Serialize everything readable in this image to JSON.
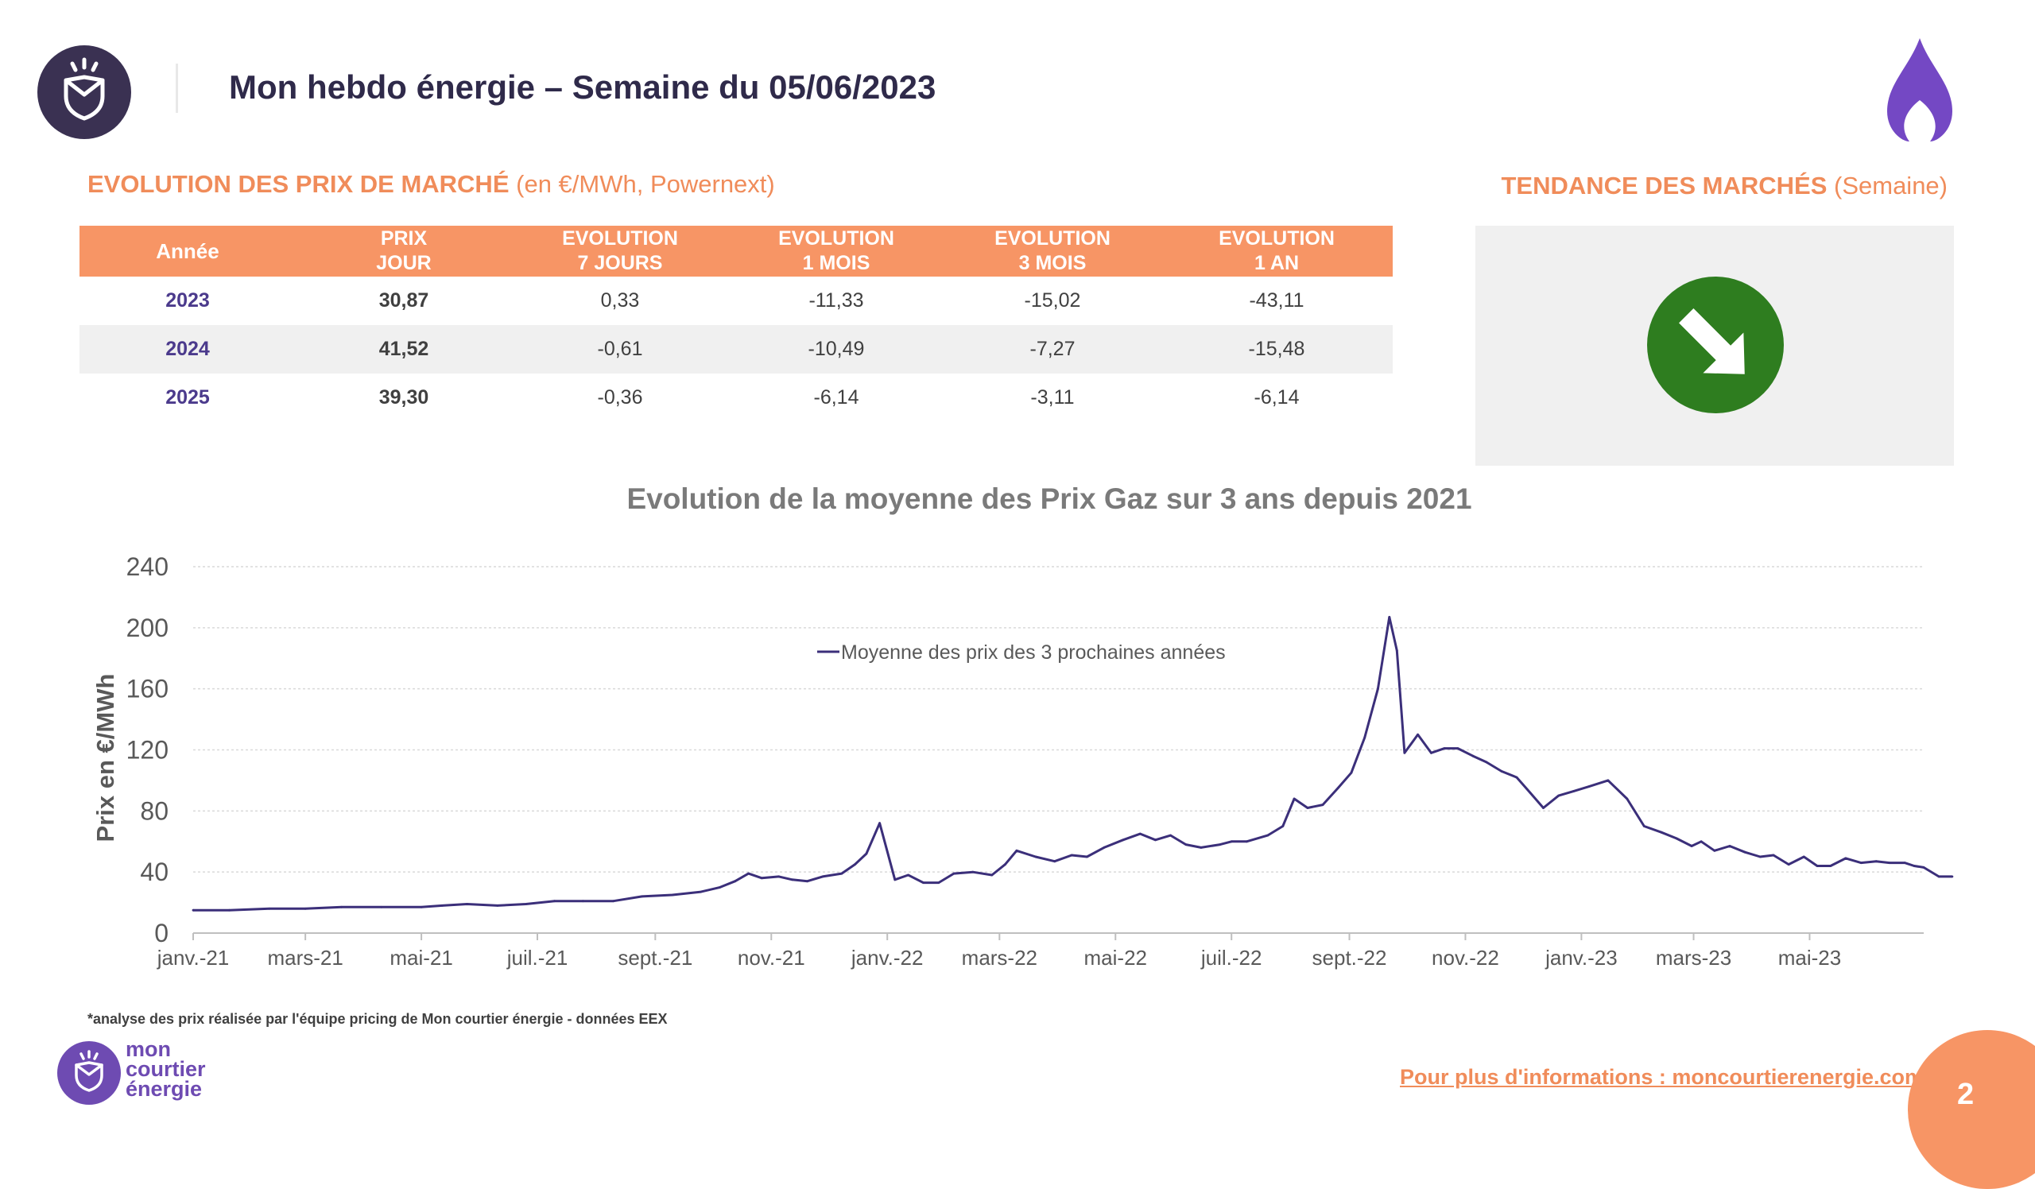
{
  "header": {
    "title": "Mon hebdo énergie – Semaine du 05/06/2023"
  },
  "market_section": {
    "title_strong": "EVOLUTION DES PRIX DE MARCHÉ",
    "title_light": "(en €/MWh, Powernext)"
  },
  "trend_section": {
    "title_strong": "TENDANCE DES MARCHÉS",
    "title_light": "(Semaine)",
    "trend_color": "#2e7d1f",
    "trend_icon": "arrow-down-right-icon"
  },
  "table": {
    "headers": [
      [
        "Année"
      ],
      [
        "PRIX",
        "JOUR"
      ],
      [
        "EVOLUTION",
        "7 JOURS"
      ],
      [
        "EVOLUTION",
        "1 MOIS"
      ],
      [
        "EVOLUTION",
        "3 MOIS"
      ],
      [
        "EVOLUTION",
        "1 AN"
      ]
    ],
    "rows": [
      [
        "2023",
        "30,87",
        "0,33",
        "-11,33",
        "-15,02",
        "-43,11"
      ],
      [
        "2024",
        "41,52",
        "-0,61",
        "-10,49",
        "-7,27",
        "-15,48"
      ],
      [
        "2025",
        "39,30",
        "-0,36",
        "-6,14",
        "-3,11",
        "-6,14"
      ]
    ]
  },
  "chart_data": {
    "type": "line",
    "title": "Evolution de la moyenne des Prix Gaz sur 3 ans depuis 2021",
    "xlabel": "",
    "ylabel": "Prix en €/MWh",
    "ylim": [
      0,
      240
    ],
    "yticks": [
      0,
      40,
      80,
      120,
      160,
      200,
      240
    ],
    "xlim": [
      "2021-01-01",
      "2023-06-30"
    ],
    "xticks": [
      {
        "date": "2021-01-01",
        "label": "janv.-21"
      },
      {
        "date": "2021-03-01",
        "label": "mars-21"
      },
      {
        "date": "2021-05-01",
        "label": "mai-21"
      },
      {
        "date": "2021-07-01",
        "label": "juil.-21"
      },
      {
        "date": "2021-09-01",
        "label": "sept.-21"
      },
      {
        "date": "2021-11-01",
        "label": "nov.-21"
      },
      {
        "date": "2022-01-01",
        "label": "janv.-22"
      },
      {
        "date": "2022-03-01",
        "label": "mars-22"
      },
      {
        "date": "2022-05-01",
        "label": "mai-22"
      },
      {
        "date": "2022-07-01",
        "label": "juil.-22"
      },
      {
        "date": "2022-09-01",
        "label": "sept.-22"
      },
      {
        "date": "2022-11-01",
        "label": "nov.-22"
      },
      {
        "date": "2023-01-01",
        "label": "janv.-23"
      },
      {
        "date": "2023-03-01",
        "label": "mars-23"
      },
      {
        "date": "2023-05-01",
        "label": "mai-23"
      }
    ],
    "grid": true,
    "legend_position": "top-center",
    "series": [
      {
        "name": "Moyenne des prix des 3 prochaines années",
        "color": "#3b2f7a",
        "points": [
          [
            "2021-01-01",
            15
          ],
          [
            "2021-01-20",
            15
          ],
          [
            "2021-02-10",
            16
          ],
          [
            "2021-03-01",
            16
          ],
          [
            "2021-03-20",
            17
          ],
          [
            "2021-04-10",
            17
          ],
          [
            "2021-05-01",
            17
          ],
          [
            "2021-05-12",
            18
          ],
          [
            "2021-05-25",
            19
          ],
          [
            "2021-06-10",
            18
          ],
          [
            "2021-06-25",
            19
          ],
          [
            "2021-07-10",
            21
          ],
          [
            "2021-07-25",
            21
          ],
          [
            "2021-08-10",
            21
          ],
          [
            "2021-08-25",
            24
          ],
          [
            "2021-09-10",
            25
          ],
          [
            "2021-09-25",
            27
          ],
          [
            "2021-10-05",
            30
          ],
          [
            "2021-10-13",
            34
          ],
          [
            "2021-10-20",
            39
          ],
          [
            "2021-10-27",
            36
          ],
          [
            "2021-11-05",
            37
          ],
          [
            "2021-11-12",
            35
          ],
          [
            "2021-11-20",
            34
          ],
          [
            "2021-11-28",
            37
          ],
          [
            "2021-12-08",
            39
          ],
          [
            "2021-12-15",
            45
          ],
          [
            "2021-12-21",
            52
          ],
          [
            "2021-12-28",
            72
          ],
          [
            "2022-01-05",
            35
          ],
          [
            "2022-01-12",
            38
          ],
          [
            "2022-01-20",
            33
          ],
          [
            "2022-01-28",
            33
          ],
          [
            "2022-02-05",
            39
          ],
          [
            "2022-02-15",
            40
          ],
          [
            "2022-02-25",
            38
          ],
          [
            "2022-03-04",
            45
          ],
          [
            "2022-03-10",
            54
          ],
          [
            "2022-03-20",
            50
          ],
          [
            "2022-03-30",
            47
          ],
          [
            "2022-04-08",
            51
          ],
          [
            "2022-04-16",
            50
          ],
          [
            "2022-04-25",
            56
          ],
          [
            "2022-05-05",
            61
          ],
          [
            "2022-05-14",
            65
          ],
          [
            "2022-05-22",
            61
          ],
          [
            "2022-05-30",
            64
          ],
          [
            "2022-06-07",
            58
          ],
          [
            "2022-06-15",
            56
          ],
          [
            "2022-06-25",
            58
          ],
          [
            "2022-07-01",
            60
          ],
          [
            "2022-07-09",
            60
          ],
          [
            "2022-07-20",
            64
          ],
          [
            "2022-07-28",
            70
          ],
          [
            "2022-08-03",
            88
          ],
          [
            "2022-08-10",
            82
          ],
          [
            "2022-08-18",
            84
          ],
          [
            "2022-08-26",
            95
          ],
          [
            "2022-09-02",
            105
          ],
          [
            "2022-09-09",
            128
          ],
          [
            "2022-09-16",
            160
          ],
          [
            "2022-09-22",
            207
          ],
          [
            "2022-09-26",
            185
          ],
          [
            "2022-09-30",
            118
          ],
          [
            "2022-10-07",
            130
          ],
          [
            "2022-10-14",
            118
          ],
          [
            "2022-10-21",
            121
          ],
          [
            "2022-10-28",
            121
          ],
          [
            "2022-11-05",
            116
          ],
          [
            "2022-11-12",
            112
          ],
          [
            "2022-11-20",
            106
          ],
          [
            "2022-11-28",
            102
          ],
          [
            "2022-12-05",
            92
          ],
          [
            "2022-12-12",
            82
          ],
          [
            "2022-12-20",
            90
          ],
          [
            "2022-12-28",
            93
          ],
          [
            "2023-01-05",
            96
          ],
          [
            "2023-01-15",
            100
          ],
          [
            "2023-01-25",
            88
          ],
          [
            "2023-02-03",
            70
          ],
          [
            "2023-02-12",
            66
          ],
          [
            "2023-02-20",
            62
          ],
          [
            "2023-02-28",
            57
          ],
          [
            "2023-03-05",
            60
          ],
          [
            "2023-03-12",
            54
          ],
          [
            "2023-03-20",
            57
          ],
          [
            "2023-03-28",
            53
          ],
          [
            "2023-04-05",
            50
          ],
          [
            "2023-04-12",
            51
          ],
          [
            "2023-04-20",
            45
          ],
          [
            "2023-04-28",
            50
          ],
          [
            "2023-05-05",
            44
          ],
          [
            "2023-05-12",
            44
          ],
          [
            "2023-05-20",
            49
          ],
          [
            "2023-05-28",
            46
          ],
          [
            "2023-06-05",
            47
          ],
          [
            "2023-06-12",
            46
          ],
          [
            "2023-06-20",
            46
          ],
          [
            "2023-06-25",
            44
          ],
          [
            "2023-06-30",
            43
          ],
          [
            "2023-07-08",
            37
          ],
          [
            "2023-07-15",
            37
          ]
        ]
      }
    ]
  },
  "footer": {
    "footnote": "*analyse des prix réalisée par l'équipe pricing de Mon courtier énergie -   données EEX",
    "brand_line1": "mon",
    "brand_line2": "courtier",
    "brand_line3": "énergie",
    "info_link": "Pour plus d'informations : moncourtierenergie.com",
    "page_number": "2",
    "accent_color": "#f79565",
    "brand_color": "#6e4bb2"
  }
}
